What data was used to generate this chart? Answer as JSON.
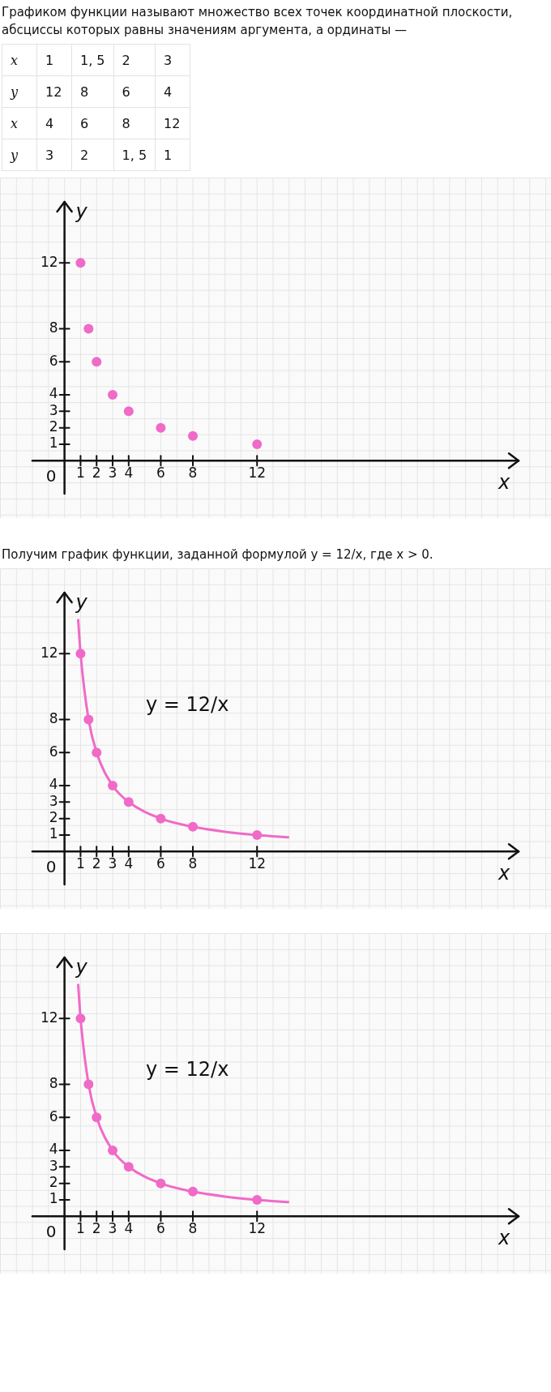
{
  "chart_data": [
    {
      "type": "other",
      "title": "Графиком функции называют множество всех точек координатной плоскости, абсциссы которых равны значениям аргумента, а ординаты —",
      "cell_labels": [
        [
          "x",
          "1",
          "1, 5",
          "2",
          "3"
        ],
        [
          "y",
          "12",
          "8",
          "6",
          "4"
        ],
        [
          "x",
          "4",
          "6",
          "8",
          "12"
        ],
        [
          "y",
          "3",
          "2",
          "1, 5",
          "1"
        ]
      ]
    },
    {
      "type": "scatter",
      "xlabel": "x",
      "ylabel": "y",
      "xlim": [
        -2,
        28.3
      ],
      "ylim": [
        -2,
        15.7
      ],
      "xticks": [
        1,
        2,
        3,
        4,
        6,
        8,
        12
      ],
      "yticks": [
        1,
        2,
        3,
        4,
        6,
        8,
        12
      ],
      "marker": "circle",
      "annotations": [
        "0"
      ],
      "series": [
        {
          "color": "#f06ac8",
          "x": [
            1,
            1.5,
            2,
            3,
            4,
            6,
            8,
            12
          ],
          "values": [
            12,
            8,
            6,
            4,
            3,
            2,
            1.5,
            1
          ]
        }
      ]
    },
    {
      "type": "line",
      "title": "Получим график функции, заданной формулой y = 12/x, где x > 0.",
      "xlabel": "x",
      "ylabel": "y",
      "xlim": [
        -2,
        28.3
      ],
      "ylim": [
        -2,
        15.7
      ],
      "xticks": [
        1,
        2,
        3,
        4,
        6,
        8,
        12
      ],
      "yticks": [
        1,
        2,
        3,
        4,
        6,
        8,
        12
      ],
      "annotations": [
        "0",
        "y = 12/x"
      ],
      "series": [
        {
          "color": "#f06ac8",
          "marker": "none",
          "x": [
            0.85,
            1,
            1.5,
            2,
            3,
            4,
            6,
            8,
            10,
            12,
            14
          ],
          "values": [
            14.1,
            12,
            8,
            6,
            4,
            3,
            2,
            1.5,
            1.2,
            1,
            0.86
          ]
        },
        {
          "type": "scatter",
          "marker": "circle",
          "color": "#f06ac8",
          "x": [
            1,
            1.5,
            2,
            3,
            4,
            6,
            8,
            12
          ],
          "values": [
            12,
            8,
            6,
            4,
            3,
            2,
            1.5,
            1
          ]
        }
      ]
    },
    {
      "type": "line",
      "xlabel": "x",
      "ylabel": "y",
      "xlim": [
        -2,
        28.3
      ],
      "ylim": [
        -2,
        15.7
      ],
      "xticks": [
        1,
        2,
        3,
        4,
        6,
        8,
        12
      ],
      "yticks": [
        1,
        2,
        3,
        4,
        6,
        8,
        12
      ],
      "annotations": [
        "0",
        "y = 12/x"
      ],
      "series": [
        {
          "color": "#f06ac8",
          "marker": "none",
          "x": [
            0.85,
            1,
            1.5,
            2,
            3,
            4,
            6,
            8,
            10,
            12,
            14
          ],
          "values": [
            14.1,
            12,
            8,
            6,
            4,
            3,
            2,
            1.5,
            1.2,
            1,
            0.86
          ]
        },
        {
          "type": "scatter",
          "marker": "circle",
          "color": "#f06ac8",
          "x": [
            1,
            1.5,
            2,
            3,
            4,
            6,
            8,
            12
          ],
          "values": [
            12,
            8,
            6,
            4,
            3,
            2,
            1.5,
            1
          ]
        }
      ]
    }
  ]
}
